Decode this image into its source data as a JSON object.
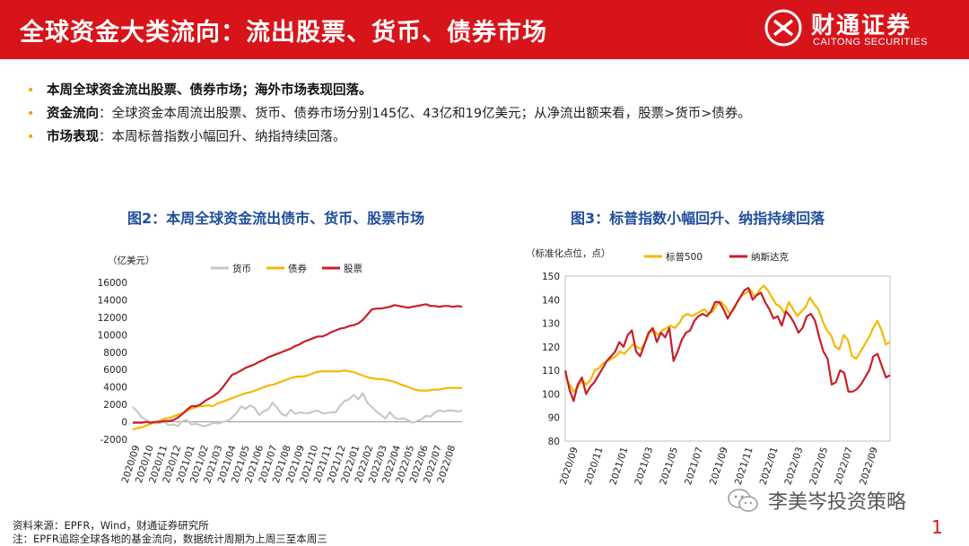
{
  "header": {
    "title": "全球资金大类流向：流出股票、货币、债券市场",
    "brand_cn": "财通证券",
    "brand_en": "CAITONG SECURITIES",
    "bg_color": "#d7141a"
  },
  "bullets": [
    {
      "bold": "本周全球资金流出股票、债券市场；海外市场表现回落。",
      "text": ""
    },
    {
      "bold": "资金流向",
      "text": "：全球资金本周流出股票、货币、债券市场分别145亿、43亿和19亿美元；从净流出额来看，股票>货币>债券。"
    },
    {
      "bold": "市场表现",
      "text": "：本周标普指数小幅回升、纳指持续回落。"
    }
  ],
  "chart_data": [
    {
      "type": "line",
      "title": "图2：本周全球资金流出债市、货币、股票市场",
      "unit_label": "（亿美元）",
      "ylim": [
        -2000,
        16000
      ],
      "yticks": [
        -2000,
        0,
        2000,
        4000,
        6000,
        8000,
        10000,
        12000,
        14000,
        16000
      ],
      "x_tick_labels": [
        "2020/09",
        "2020/10",
        "2020/11",
        "2020/12",
        "2021/01",
        "2021/02",
        "2021/03",
        "2021/04",
        "2021/05",
        "2021/06",
        "2021/07",
        "2021/08",
        "2021/09",
        "2021/10",
        "2021/11",
        "2021/12",
        "2022/01",
        "2022/02",
        "2022/03",
        "2022/04",
        "2022/05",
        "2022/06",
        "2022/07",
        "2022/08"
      ],
      "series": [
        {
          "name": "货币",
          "color": "#c8c8c8",
          "values": [
            1700,
            1200,
            500,
            200,
            0,
            -200,
            -100,
            0,
            -400,
            -300,
            -500,
            100,
            200,
            -300,
            -200,
            -400,
            -500,
            -300,
            -100,
            -200,
            0,
            100,
            500,
            1000,
            1800,
            1500,
            1900,
            1600,
            800,
            1200,
            1400,
            2200,
            1600,
            900,
            700,
            1400,
            900,
            1100,
            1000,
            1000,
            1200,
            1300,
            1000,
            1000,
            1100,
            1100,
            1900,
            2400,
            2600,
            3100,
            2600,
            3300,
            2200,
            1700,
            1200,
            800,
            400,
            1100,
            500,
            300,
            400,
            200,
            -100,
            100,
            300,
            700,
            600,
            1100,
            1300,
            1200,
            1300,
            1300,
            1200,
            1300
          ]
        },
        {
          "name": "债券",
          "color": "#f5b800",
          "values": [
            -900,
            -700,
            -600,
            -400,
            -200,
            0,
            200,
            400,
            500,
            700,
            900,
            1100,
            1400,
            1600,
            1800,
            1800,
            1900,
            1800,
            2100,
            2300,
            2500,
            2700,
            2900,
            3100,
            3300,
            3400,
            3600,
            3800,
            4000,
            4200,
            4300,
            4500,
            4700,
            4900,
            5100,
            5200,
            5200,
            5300,
            5500,
            5700,
            5800,
            5800,
            5800,
            5800,
            5800,
            5900,
            5800,
            5700,
            5500,
            5300,
            5100,
            5000,
            4900,
            4900,
            4800,
            4700,
            4500,
            4300,
            4100,
            3900,
            3700,
            3600,
            3600,
            3600,
            3700,
            3700,
            3800,
            3900,
            3900,
            3900,
            3900
          ]
        },
        {
          "name": "股票",
          "color": "#c81e28",
          "values": [
            -100,
            -100,
            -100,
            0,
            -100,
            0,
            0,
            100,
            100,
            200,
            500,
            900,
            1400,
            1800,
            1800,
            2000,
            2400,
            2700,
            3000,
            3400,
            4000,
            4700,
            5400,
            5600,
            5900,
            6200,
            6400,
            6600,
            6900,
            7100,
            7400,
            7600,
            7800,
            8000,
            8200,
            8400,
            8700,
            8900,
            9200,
            9400,
            9600,
            9800,
            9800,
            10000,
            10300,
            10500,
            10700,
            10800,
            11000,
            11100,
            11300,
            11700,
            12300,
            12900,
            13000,
            13000,
            13100,
            13200,
            13400,
            13300,
            13200,
            13100,
            13200,
            13300,
            13400,
            13500,
            13300,
            13300,
            13200,
            13300,
            13300,
            13200,
            13300,
            13200
          ]
        }
      ]
    },
    {
      "type": "line",
      "title": "图3：标普指数小幅回升、纳指持续回落",
      "unit_label": "（标准化点位，点）",
      "ylim": [
        80,
        150
      ],
      "yticks": [
        80,
        90,
        100,
        110,
        120,
        130,
        140,
        150
      ],
      "x_tick_labels": [
        "2020/09",
        "2020/11",
        "2021/01",
        "2021/03",
        "2021/05",
        "2021/07",
        "2021/09",
        "2021/11",
        "2022/01",
        "2022/03",
        "2022/05",
        "2022/07",
        "2022/09"
      ],
      "series": [
        {
          "name": "标普500",
          "color": "#f5b800",
          "values": [
            108,
            104,
            101,
            103,
            106,
            104,
            106,
            110,
            111,
            113,
            114,
            115,
            116,
            118,
            117,
            119,
            121,
            120,
            119,
            122,
            126,
            127,
            125,
            127,
            128,
            129,
            128,
            130,
            133,
            134,
            133,
            134,
            135,
            136,
            134,
            135,
            138,
            139,
            137,
            134,
            136,
            140,
            142,
            143,
            144,
            141,
            144,
            146,
            144,
            141,
            138,
            137,
            134,
            139,
            136,
            133,
            135,
            137,
            141,
            138,
            136,
            131,
            127,
            125,
            120,
            119,
            125,
            123,
            116,
            115,
            118,
            121,
            124,
            128,
            131,
            127,
            121,
            122
          ]
        },
        {
          "name": "纳斯达克",
          "color": "#c81e28",
          "values": [
            110,
            102,
            97,
            104,
            107,
            100,
            103,
            105,
            108,
            111,
            114,
            116,
            118,
            122,
            120,
            125,
            127,
            118,
            116,
            121,
            126,
            128,
            122,
            126,
            124,
            128,
            114,
            118,
            123,
            126,
            127,
            131,
            133,
            134,
            133,
            135,
            139,
            139,
            136,
            132,
            135,
            138,
            141,
            144,
            145,
            140,
            142,
            143,
            139,
            136,
            132,
            133,
            129,
            135,
            133,
            130,
            126,
            128,
            133,
            134,
            131,
            124,
            118,
            115,
            104,
            105,
            110,
            109,
            101,
            101,
            102,
            104,
            107,
            110,
            116,
            117,
            112,
            107,
            108
          ]
        }
      ]
    }
  ],
  "footnotes": {
    "source": "资料来源：EPFR，Wind，财通证券研究所",
    "note": "注：EPFR追踪全球各地的基金流向，数据统计周期为上周三至本周三"
  },
  "watermark": "李美岑投资策略",
  "page_number": "1"
}
